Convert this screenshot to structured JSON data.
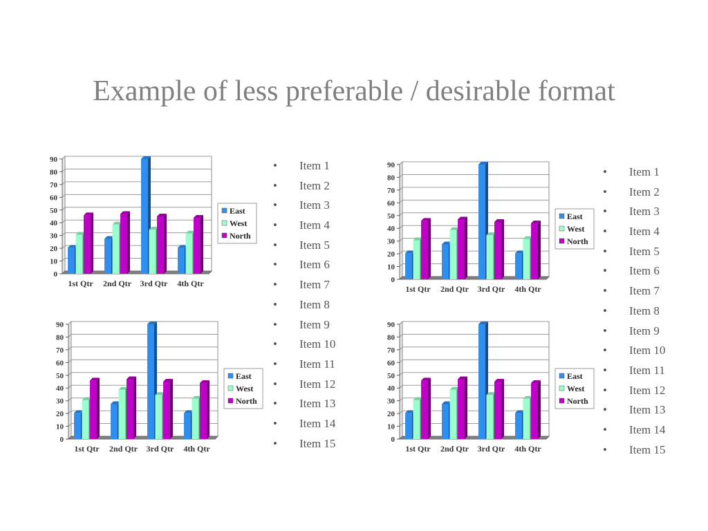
{
  "slide": {
    "title": "Example of less preferable / desirable format"
  },
  "colors": {
    "East": "#2e8ff0",
    "West": "#99ffcc",
    "North": "#c000c8"
  },
  "bullet_lists": [
    {
      "items": [
        "Item 1",
        "Item 2",
        "Item 3",
        "Item 4",
        "Item 5",
        "Item 6",
        "Item 7",
        "Item 8",
        "Item 9",
        "Item 10",
        "Item 11",
        "Item 12",
        "Item 13",
        "Item 14",
        "Item 15"
      ]
    },
    {
      "items": [
        "Item 1",
        "Item 2",
        "Item 3",
        "Item 4",
        "Item 5",
        "Item 6",
        "Item 7",
        "Item 8",
        "Item 9",
        "Item 10",
        "Item 11",
        "Item 12",
        "Item 13",
        "Item 14",
        "Item 15"
      ]
    }
  ],
  "chart_data": [
    {
      "type": "bar",
      "categories": [
        "1st Qtr",
        "2nd Qtr",
        "3rd Qtr",
        "4th Qtr"
      ],
      "series": [
        {
          "name": "East",
          "values": [
            20.4,
            27.4,
            90,
            20.4
          ]
        },
        {
          "name": "West",
          "values": [
            30.6,
            38.6,
            34.6,
            31.6
          ]
        },
        {
          "name": "North",
          "values": [
            45.9,
            46.9,
            45,
            43.9
          ]
        }
      ],
      "yticks": [
        0,
        10,
        20,
        30,
        40,
        50,
        60,
        70,
        80,
        90
      ],
      "ylim": [
        0,
        90
      ],
      "grid": true,
      "legend": "right"
    },
    {
      "type": "bar",
      "categories": [
        "1st Qtr",
        "2nd Qtr",
        "3rd Qtr",
        "4th Qtr"
      ],
      "series": [
        {
          "name": "East",
          "values": [
            20.4,
            27.4,
            90,
            20.4
          ]
        },
        {
          "name": "West",
          "values": [
            30.6,
            38.6,
            34.6,
            31.6
          ]
        },
        {
          "name": "North",
          "values": [
            45.9,
            46.9,
            45,
            43.9
          ]
        }
      ],
      "yticks": [
        0,
        10,
        20,
        30,
        40,
        50,
        60,
        70,
        80,
        90
      ],
      "ylim": [
        0,
        90
      ],
      "grid": true,
      "legend": "right"
    },
    {
      "type": "bar",
      "categories": [
        "1st Qtr",
        "2nd Qtr",
        "3rd Qtr",
        "4th Qtr"
      ],
      "series": [
        {
          "name": "East",
          "values": [
            20.4,
            27.4,
            90,
            20.4
          ]
        },
        {
          "name": "West",
          "values": [
            30.6,
            38.6,
            34.6,
            31.6
          ]
        },
        {
          "name": "North",
          "values": [
            45.9,
            46.9,
            45,
            43.9
          ]
        }
      ],
      "yticks": [
        0,
        10,
        20,
        30,
        40,
        50,
        60,
        70,
        80,
        90
      ],
      "ylim": [
        0,
        90
      ],
      "grid": true,
      "legend": "right"
    },
    {
      "type": "bar",
      "categories": [
        "1st Qtr",
        "2nd Qtr",
        "3rd Qtr",
        "4th Qtr"
      ],
      "series": [
        {
          "name": "East",
          "values": [
            20.4,
            27.4,
            90,
            20.4
          ]
        },
        {
          "name": "West",
          "values": [
            30.6,
            38.6,
            34.6,
            31.6
          ]
        },
        {
          "name": "North",
          "values": [
            45.9,
            46.9,
            45,
            43.9
          ]
        }
      ],
      "yticks": [
        0,
        10,
        20,
        30,
        40,
        50,
        60,
        70,
        80,
        90
      ],
      "ylim": [
        0,
        90
      ],
      "grid": true,
      "legend": "right"
    }
  ]
}
